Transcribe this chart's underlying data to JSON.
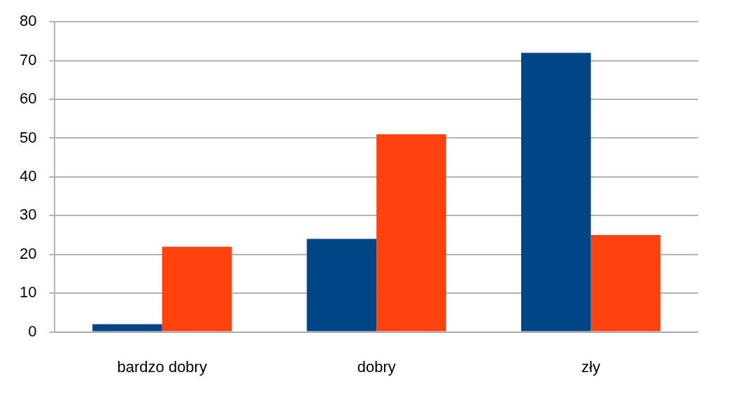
{
  "chart_data": {
    "type": "bar",
    "categories": [
      "bardzo dobry",
      "dobry",
      "zły"
    ],
    "series": [
      {
        "color": "#004586",
        "values": [
          2,
          24,
          72
        ]
      },
      {
        "color": "#ff420e",
        "values": [
          22,
          51,
          25
        ]
      }
    ],
    "ylim": [
      0,
      80
    ],
    "yticks": [
      0,
      10,
      20,
      30,
      40,
      50,
      60,
      70,
      80
    ],
    "grid": "y",
    "legend": false
  }
}
